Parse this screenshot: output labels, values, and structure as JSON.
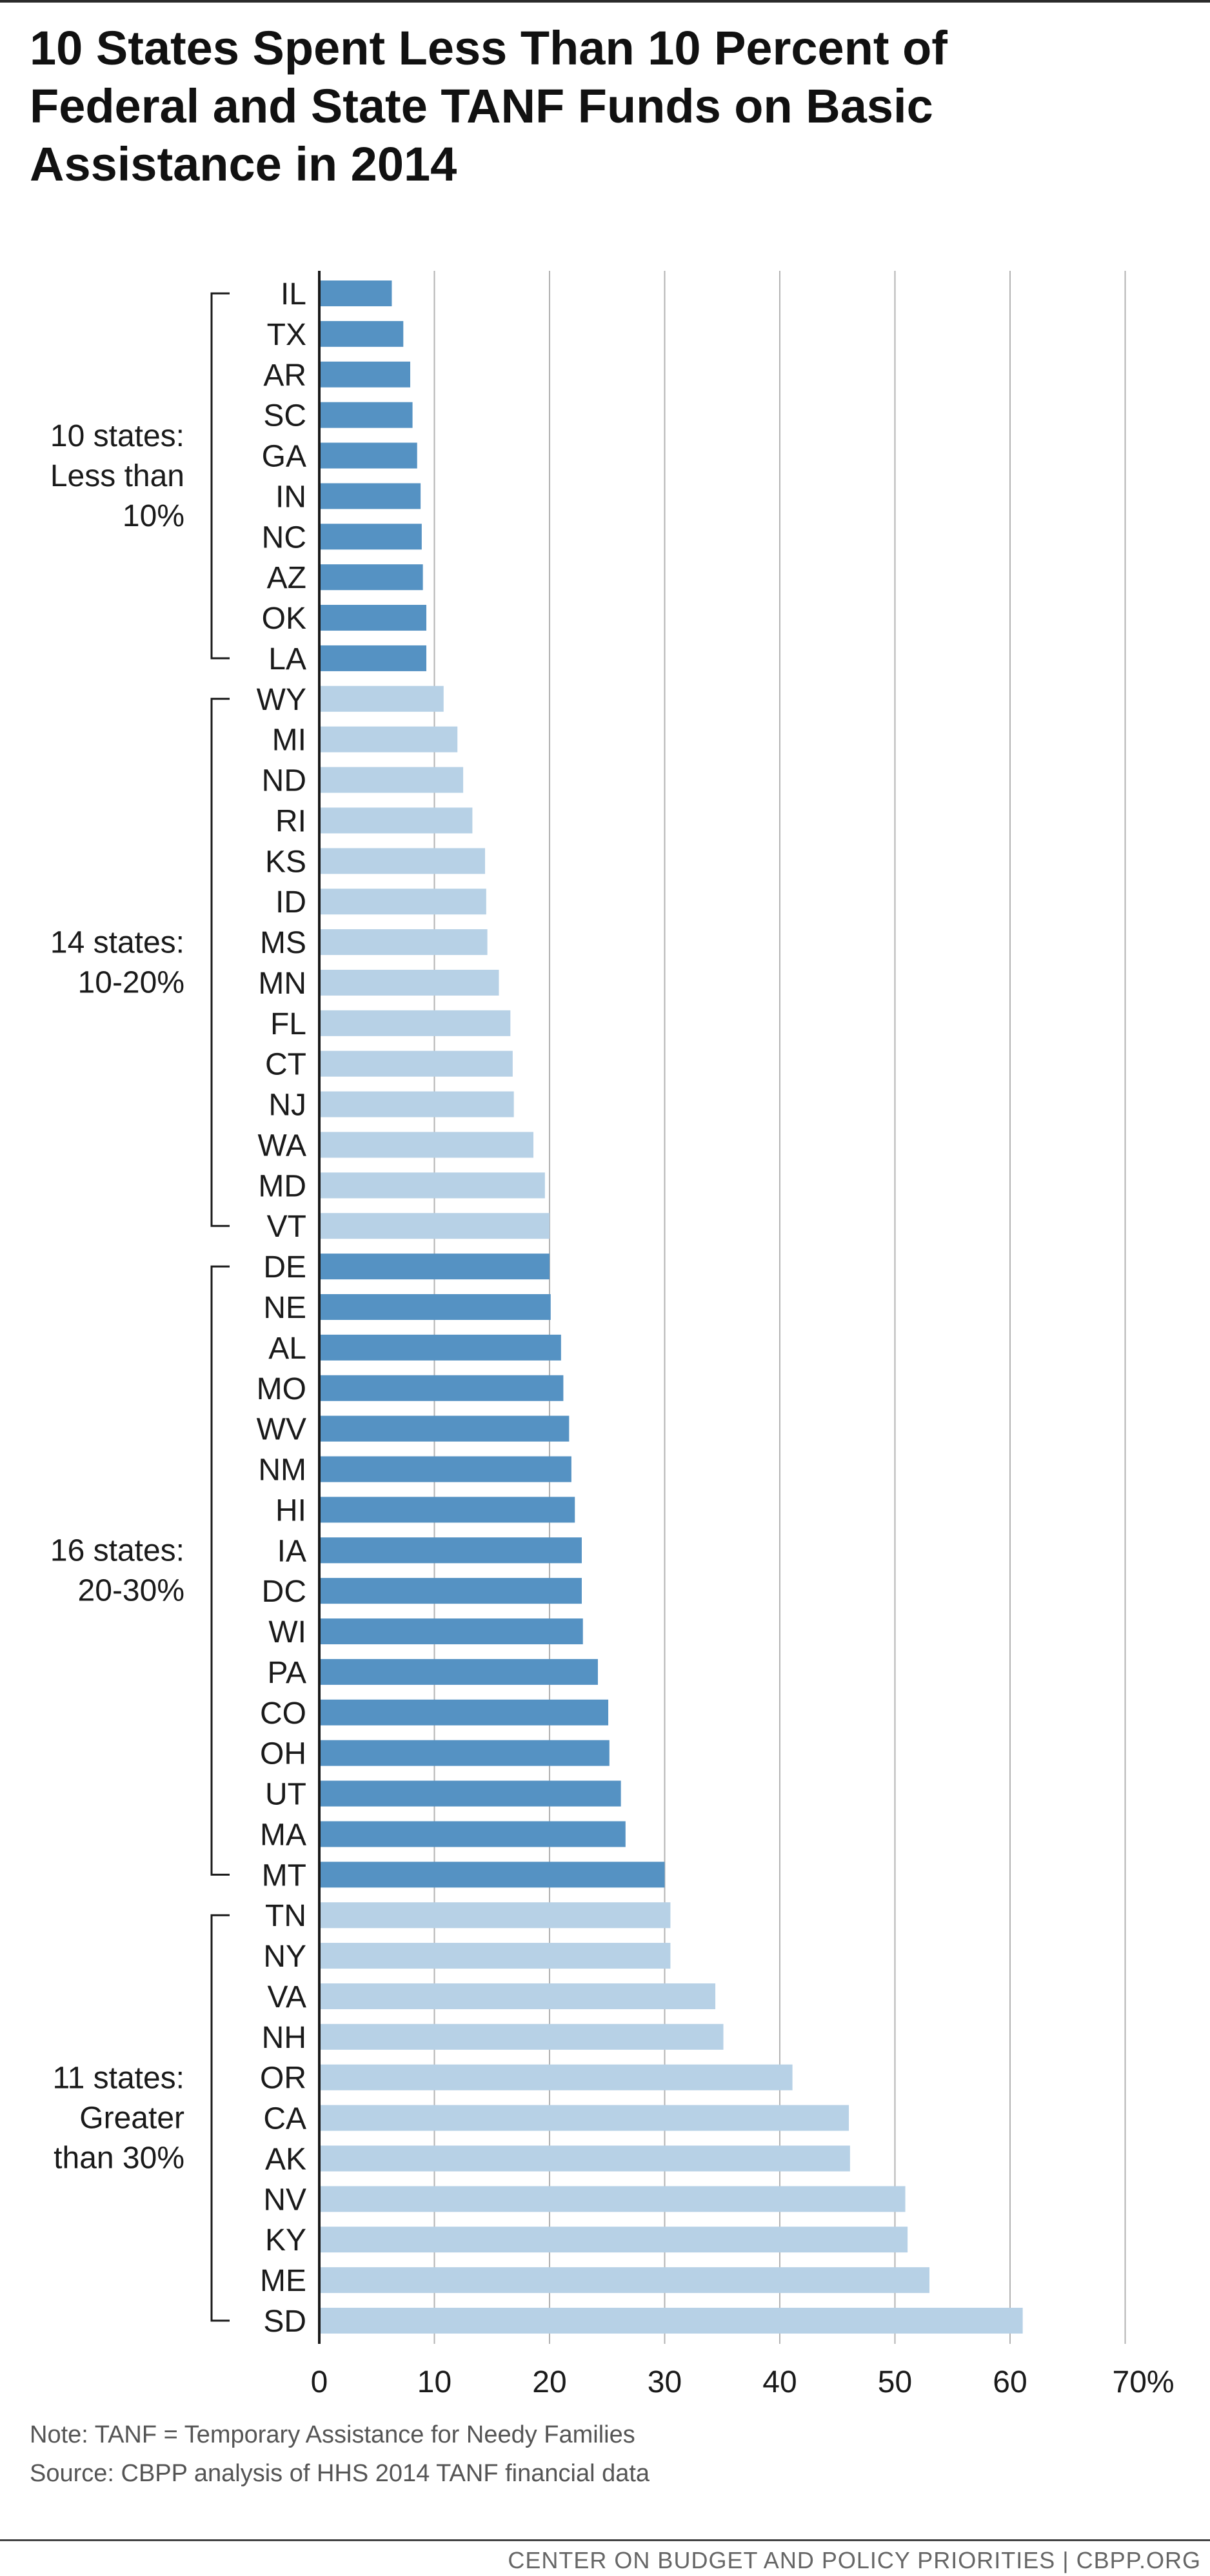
{
  "title": "10 States Spent Less Than 10 Percent of Federal and State TANF Funds on Basic Assistance in 2014",
  "note": "Note: TANF = Temporary Assistance for Needy Families",
  "source": "Source: CBPP analysis of HHS 2014 TANF financial data",
  "footer": "CENTER ON BUDGET AND POLICY PRIORITIES | CBPP.ORG",
  "colors": {
    "dark_bar": "#5592c3",
    "light_bar": "#b7d1e6",
    "grid": "#b3b3b3",
    "axis": "#1a1a1a"
  },
  "chart_data": {
    "type": "bar",
    "orientation": "horizontal",
    "categories": [
      "IL",
      "TX",
      "AR",
      "SC",
      "GA",
      "IN",
      "NC",
      "AZ",
      "OK",
      "LA",
      "WY",
      "MI",
      "ND",
      "RI",
      "KS",
      "ID",
      "MS",
      "MN",
      "FL",
      "CT",
      "NJ",
      "WA",
      "MD",
      "VT",
      "DE",
      "NE",
      "AL",
      "MO",
      "WV",
      "NM",
      "HI",
      "IA",
      "DC",
      "WI",
      "PA",
      "CO",
      "OH",
      "UT",
      "MA",
      "MT",
      "TN",
      "NY",
      "VA",
      "NH",
      "OR",
      "CA",
      "AK",
      "NV",
      "KY",
      "ME",
      "SD"
    ],
    "values": [
      6.3,
      7.3,
      7.9,
      8.1,
      8.5,
      8.8,
      8.9,
      9.0,
      9.3,
      9.3,
      10.8,
      12.0,
      12.5,
      13.3,
      14.4,
      14.5,
      14.6,
      15.6,
      16.6,
      16.8,
      16.9,
      18.6,
      19.6,
      20.0,
      20.0,
      20.1,
      21.0,
      21.2,
      21.7,
      21.9,
      22.2,
      22.8,
      22.8,
      22.9,
      24.2,
      25.1,
      25.2,
      26.2,
      26.6,
      30.0,
      30.5,
      30.5,
      34.4,
      35.1,
      41.1,
      46.0,
      46.1,
      50.9,
      51.1,
      53.0,
      61.1
    ],
    "xlim": [
      0,
      70
    ],
    "xticks": [
      "0",
      "10",
      "20",
      "30",
      "40",
      "50",
      "60",
      "70%"
    ],
    "grid": true,
    "groups": [
      {
        "label_lines": [
          "10 states:",
          "Less than",
          "10%"
        ],
        "start": 0,
        "end": 9,
        "shade": "dark"
      },
      {
        "label_lines": [
          "14 states:",
          "10-20%"
        ],
        "start": 10,
        "end": 23,
        "shade": "light"
      },
      {
        "label_lines": [
          "16 states:",
          "20-30%"
        ],
        "start": 24,
        "end": 39,
        "shade": "dark"
      },
      {
        "label_lines": [
          "11 states:",
          "Greater",
          "than 30%"
        ],
        "start": 40,
        "end": 50,
        "shade": "light"
      }
    ]
  }
}
